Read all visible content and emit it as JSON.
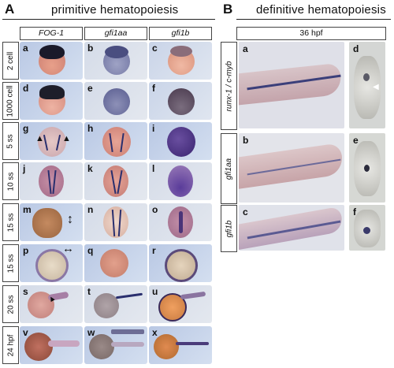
{
  "panelA": {
    "letter": "A",
    "title": "primitive hematopoiesis",
    "columns": [
      "FOG-1",
      "gfi1aa",
      "gfi1b"
    ],
    "rows": [
      "2 cell",
      "1000 cell",
      "5 ss",
      "10 ss",
      "15 ss",
      "15 ss",
      "20 ss",
      "24 hpf"
    ],
    "cells": [
      [
        "a",
        "b",
        "c"
      ],
      [
        "d",
        "e",
        "f"
      ],
      [
        "g",
        "h",
        "i"
      ],
      [
        "j",
        "k",
        "l"
      ],
      [
        "m",
        "n",
        "o"
      ],
      [
        "p",
        "q",
        "r"
      ],
      [
        "s",
        "t",
        "u"
      ],
      [
        "v",
        "w",
        "x"
      ]
    ]
  },
  "panelB": {
    "letter": "B",
    "title": "definitive hematopoiesis",
    "stage": "36 hpf",
    "rows": [
      "runx-1 / c-myb",
      "gfi1aa",
      "gfi1b"
    ],
    "lateral_letters": [
      "a",
      "b",
      "c"
    ],
    "section_letters": [
      "d",
      "e",
      "f"
    ]
  },
  "colors": {
    "stain": "#2a2f6e",
    "yolk": "#d9a089",
    "background_blue": "#c9d4e8"
  }
}
